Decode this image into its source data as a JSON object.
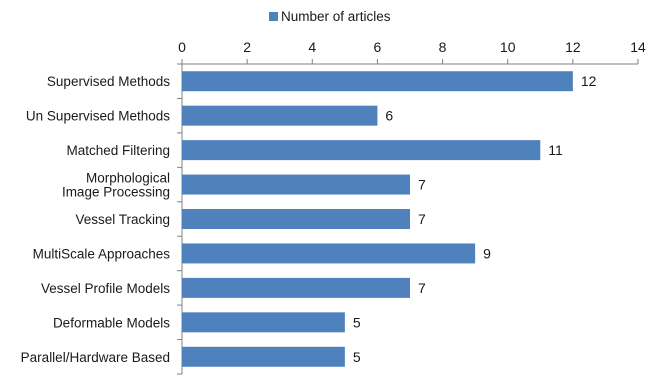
{
  "chart_data": {
    "type": "bar",
    "orientation": "horizontal",
    "categories": [
      "Supervised Methods",
      "Un Supervised Methods",
      "Matched Filtering",
      "Morphological\nImage Processing",
      "Vessel Tracking",
      "MultiScale Approaches",
      "Vessel Profile Models",
      "Deformable Models",
      "Parallel/Hardware Based"
    ],
    "series": [
      {
        "name": "Number of articles",
        "values": [
          12,
          6,
          11,
          7,
          7,
          9,
          7,
          5,
          5
        ]
      }
    ],
    "xlim": [
      0,
      14
    ],
    "xticks": [
      0,
      2,
      4,
      6,
      8,
      10,
      12,
      14
    ],
    "xaxis_position": "top",
    "legend": "top",
    "grid": false,
    "data_labels": true,
    "colors": {
      "bar": "#4f81bd",
      "axis": "#808080",
      "text": "#1a1a1a"
    }
  }
}
